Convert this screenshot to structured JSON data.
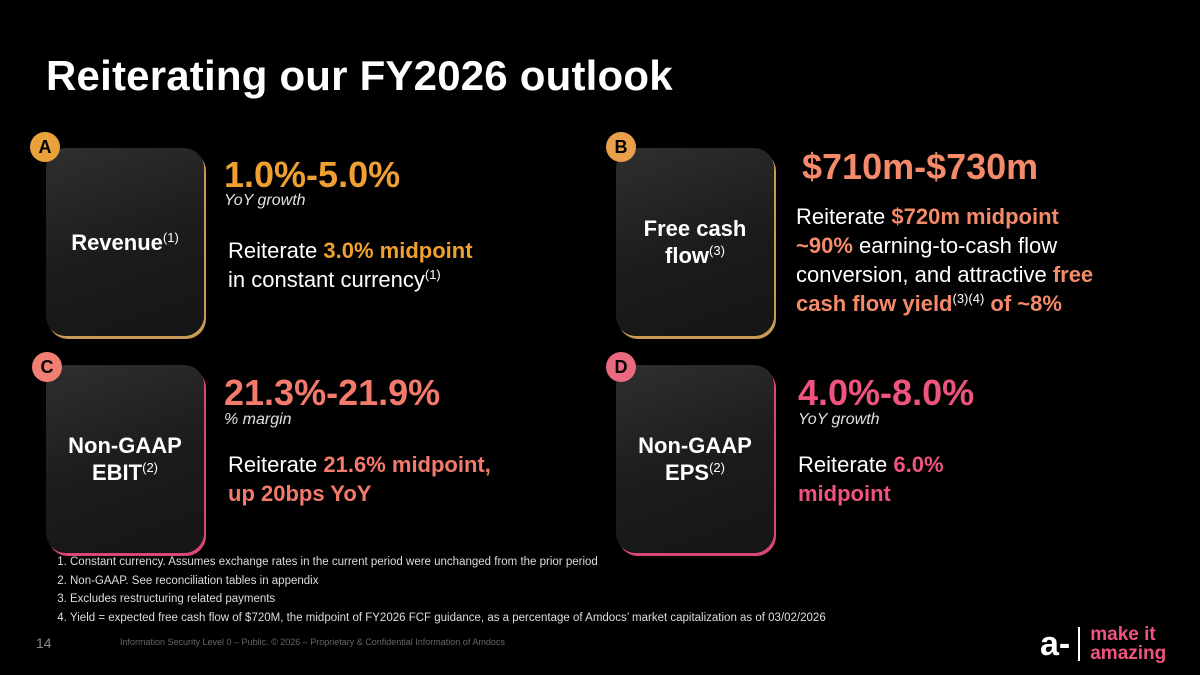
{
  "title": "Reiterating our FY2026 outlook",
  "colors": {
    "accent_orange": "#f0a033",
    "accent_salmon": "#f58a6a",
    "accent_pink": "#f0537e",
    "background": "#000000"
  },
  "sections": {
    "a": {
      "badge": "A",
      "card_label": "Revenue",
      "card_sup": "(1)",
      "headline": "1.0%-5.0%",
      "subtitle": "YoY growth",
      "body_pre": "Reiterate ",
      "body_hl": "3.0% midpoint",
      "body_line2": "in constant currency",
      "body_sup": "(1)"
    },
    "b": {
      "badge": "B",
      "card_label_1": "Free cash",
      "card_label_2": "flow",
      "card_sup": "(3)",
      "headline": "$710m-$730m",
      "l1_pre": "Reiterate ",
      "l1_hl": "$720m midpoint",
      "l2_hl": "~90%",
      "l2_post": " earning-to-cash flow",
      "l3_pre": "conversion, and attractive ",
      "l3_hl": "free",
      "l4_hl": "cash flow yield",
      "l4_sup": "(3)(4)",
      "l4_post": " of ~8%"
    },
    "c": {
      "badge": "C",
      "card_label_1": "Non-GAAP",
      "card_label_2": "EBIT",
      "card_sup": "(2)",
      "headline": "21.3%-21.9%",
      "subtitle": "% margin",
      "l1_pre": "Reiterate ",
      "l1_hl": "21.6% midpoint,",
      "l2_hl": "up 20bps YoY"
    },
    "d": {
      "badge": "D",
      "card_label_1": "Non-GAAP",
      "card_label_2": "EPS",
      "card_sup": "(2)",
      "headline": "4.0%-8.0%",
      "subtitle": "YoY growth",
      "l1_pre": "Reiterate ",
      "l1_hl": "6.0%",
      "l2_hl": "midpoint"
    }
  },
  "footnotes": [
    "Constant currency. Assumes exchange rates in the current period were unchanged from the prior period",
    "Non-GAAP. See reconciliation tables in appendix",
    "Excludes restructuring related payments",
    "Yield = expected free cash flow of $720M, the midpoint of FY2026 FCF guidance, as a percentage of Amdocs’ market capitalization as of 03/02/2026"
  ],
  "page_number": "14",
  "legal": "Information Security Level 0 – Public. © 2026 – Proprietary & Confidential Information of Amdocs",
  "logo": {
    "mark": "a-",
    "tagline_1": "make it",
    "tagline_2": "amazing"
  }
}
